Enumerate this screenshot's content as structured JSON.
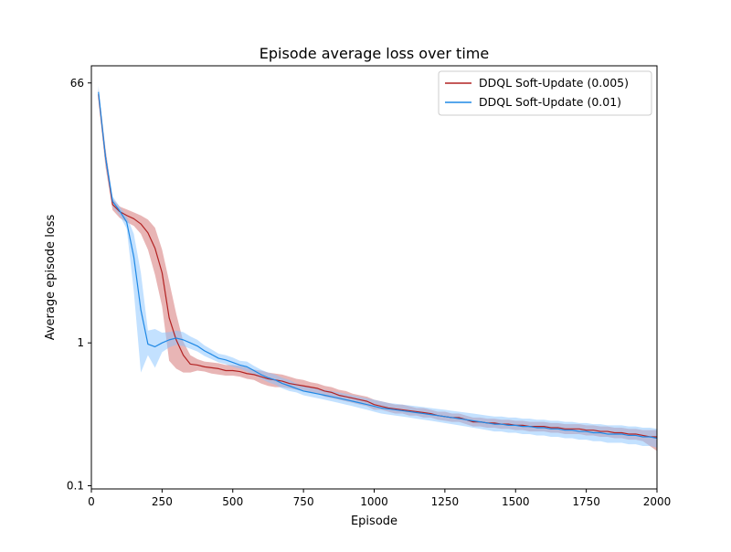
{
  "chart_data": {
    "type": "line",
    "title": "Episode average loss over time",
    "xlabel": "Episode",
    "ylabel": "Average episode loss",
    "xlim": [
      0,
      2000
    ],
    "ylim": [
      0.095,
      87
    ],
    "yscale": "log",
    "grid": false,
    "legend_position": "top-right",
    "x_ticks": [
      0,
      250,
      500,
      750,
      1000,
      1250,
      1500,
      1750,
      2000
    ],
    "y_ticks": [
      {
        "value": 0.1,
        "label": "0.1"
      },
      {
        "value": 1,
        "label": "1"
      },
      {
        "value": 66,
        "label": "66"
      }
    ],
    "series": [
      {
        "name": "DDQL Soft-Update (0.005)",
        "color": "#b22222",
        "band_color": "#cd5c5c",
        "x": [
          25,
          50,
          75,
          100,
          125,
          150,
          175,
          200,
          225,
          250,
          275,
          300,
          325,
          350,
          375,
          400,
          425,
          450,
          475,
          500,
          525,
          550,
          575,
          600,
          625,
          650,
          675,
          700,
          725,
          750,
          775,
          800,
          825,
          850,
          875,
          900,
          925,
          950,
          975,
          1000,
          1025,
          1050,
          1075,
          1100,
          1125,
          1150,
          1175,
          1200,
          1225,
          1250,
          1275,
          1300,
          1325,
          1350,
          1375,
          1400,
          1425,
          1450,
          1475,
          1500,
          1525,
          1550,
          1575,
          1600,
          1625,
          1650,
          1675,
          1700,
          1725,
          1750,
          1775,
          1800,
          1825,
          1850,
          1875,
          1900,
          1925,
          1950,
          1975,
          2000
        ],
        "y": [
          55,
          20,
          9.3,
          8.3,
          7.8,
          7.4,
          6.8,
          5.9,
          4.6,
          3.1,
          1.5,
          1.05,
          0.82,
          0.71,
          0.7,
          0.68,
          0.67,
          0.66,
          0.64,
          0.64,
          0.63,
          0.61,
          0.6,
          0.58,
          0.56,
          0.55,
          0.54,
          0.52,
          0.51,
          0.5,
          0.49,
          0.48,
          0.46,
          0.45,
          0.43,
          0.42,
          0.41,
          0.4,
          0.39,
          0.37,
          0.36,
          0.35,
          0.345,
          0.34,
          0.335,
          0.33,
          0.325,
          0.32,
          0.31,
          0.305,
          0.3,
          0.3,
          0.29,
          0.28,
          0.28,
          0.275,
          0.275,
          0.27,
          0.27,
          0.265,
          0.265,
          0.26,
          0.26,
          0.26,
          0.255,
          0.255,
          0.25,
          0.25,
          0.25,
          0.245,
          0.245,
          0.24,
          0.24,
          0.235,
          0.235,
          0.23,
          0.23,
          0.225,
          0.22,
          0.22
        ],
        "y_low": [
          50,
          17,
          8.5,
          7.5,
          7.0,
          6.6,
          5.8,
          4.5,
          3.0,
          1.8,
          0.75,
          0.66,
          0.62,
          0.62,
          0.64,
          0.63,
          0.61,
          0.6,
          0.59,
          0.59,
          0.58,
          0.56,
          0.55,
          0.52,
          0.5,
          0.49,
          0.49,
          0.48,
          0.47,
          0.46,
          0.45,
          0.44,
          0.42,
          0.41,
          0.4,
          0.39,
          0.38,
          0.37,
          0.36,
          0.34,
          0.34,
          0.33,
          0.32,
          0.32,
          0.31,
          0.31,
          0.3,
          0.3,
          0.29,
          0.285,
          0.28,
          0.28,
          0.27,
          0.26,
          0.26,
          0.255,
          0.255,
          0.25,
          0.25,
          0.245,
          0.245,
          0.24,
          0.24,
          0.24,
          0.235,
          0.235,
          0.23,
          0.23,
          0.23,
          0.225,
          0.225,
          0.22,
          0.22,
          0.215,
          0.215,
          0.21,
          0.21,
          0.205,
          0.19,
          0.175
        ],
        "y_high": [
          60,
          23,
          10.2,
          9.0,
          8.6,
          8.2,
          7.8,
          7.3,
          6.4,
          4.5,
          2.7,
          1.6,
          1.02,
          0.82,
          0.77,
          0.74,
          0.73,
          0.72,
          0.7,
          0.7,
          0.69,
          0.67,
          0.65,
          0.64,
          0.62,
          0.61,
          0.6,
          0.58,
          0.56,
          0.55,
          0.53,
          0.52,
          0.5,
          0.49,
          0.47,
          0.46,
          0.44,
          0.43,
          0.42,
          0.4,
          0.39,
          0.38,
          0.37,
          0.37,
          0.36,
          0.35,
          0.35,
          0.34,
          0.33,
          0.33,
          0.32,
          0.32,
          0.31,
          0.3,
          0.3,
          0.295,
          0.295,
          0.29,
          0.29,
          0.285,
          0.285,
          0.28,
          0.28,
          0.28,
          0.275,
          0.275,
          0.27,
          0.27,
          0.27,
          0.265,
          0.265,
          0.26,
          0.26,
          0.255,
          0.255,
          0.25,
          0.25,
          0.245,
          0.245,
          0.245
        ]
      },
      {
        "name": "DDQL Soft-Update (0.01)",
        "color": "#1e88e5",
        "band_color": "#87c3ff",
        "x": [
          25,
          50,
          75,
          100,
          125,
          150,
          175,
          200,
          225,
          250,
          275,
          300,
          325,
          350,
          375,
          400,
          425,
          450,
          475,
          500,
          525,
          550,
          575,
          600,
          625,
          650,
          675,
          700,
          725,
          750,
          775,
          800,
          825,
          850,
          875,
          900,
          925,
          950,
          975,
          1000,
          1025,
          1050,
          1075,
          1100,
          1125,
          1150,
          1175,
          1200,
          1225,
          1250,
          1275,
          1300,
          1325,
          1350,
          1375,
          1400,
          1425,
          1450,
          1475,
          1500,
          1525,
          1550,
          1575,
          1600,
          1625,
          1650,
          1675,
          1700,
          1725,
          1750,
          1775,
          1800,
          1825,
          1850,
          1875,
          1900,
          1925,
          1950,
          1975,
          2000
        ],
        "y": [
          57,
          20,
          9.8,
          8.4,
          7.0,
          4.0,
          1.7,
          0.98,
          0.94,
          1.0,
          1.05,
          1.08,
          1.05,
          1.0,
          0.95,
          0.88,
          0.83,
          0.78,
          0.76,
          0.73,
          0.7,
          0.68,
          0.64,
          0.6,
          0.57,
          0.55,
          0.52,
          0.5,
          0.48,
          0.46,
          0.45,
          0.44,
          0.43,
          0.42,
          0.41,
          0.4,
          0.39,
          0.38,
          0.37,
          0.36,
          0.35,
          0.345,
          0.34,
          0.335,
          0.33,
          0.325,
          0.32,
          0.315,
          0.31,
          0.305,
          0.3,
          0.295,
          0.29,
          0.285,
          0.28,
          0.275,
          0.27,
          0.27,
          0.265,
          0.265,
          0.26,
          0.26,
          0.255,
          0.255,
          0.25,
          0.25,
          0.245,
          0.245,
          0.24,
          0.24,
          0.235,
          0.235,
          0.23,
          0.23,
          0.23,
          0.225,
          0.225,
          0.22,
          0.22,
          0.215
        ],
        "y_low": [
          52,
          18,
          9.0,
          7.8,
          6.3,
          2.3,
          0.62,
          0.82,
          0.67,
          0.86,
          0.93,
          0.97,
          0.95,
          0.91,
          0.87,
          0.81,
          0.77,
          0.73,
          0.71,
          0.68,
          0.66,
          0.63,
          0.6,
          0.56,
          0.53,
          0.51,
          0.48,
          0.46,
          0.45,
          0.43,
          0.42,
          0.41,
          0.4,
          0.39,
          0.38,
          0.37,
          0.36,
          0.35,
          0.34,
          0.33,
          0.32,
          0.315,
          0.31,
          0.305,
          0.3,
          0.295,
          0.29,
          0.285,
          0.28,
          0.275,
          0.27,
          0.265,
          0.26,
          0.255,
          0.25,
          0.245,
          0.24,
          0.24,
          0.235,
          0.235,
          0.23,
          0.23,
          0.225,
          0.225,
          0.22,
          0.22,
          0.215,
          0.215,
          0.21,
          0.21,
          0.205,
          0.205,
          0.2,
          0.2,
          0.2,
          0.195,
          0.195,
          0.19,
          0.19,
          0.185
        ],
        "y_high": [
          63,
          22,
          10.6,
          9.0,
          7.7,
          5.8,
          3.1,
          1.22,
          1.25,
          1.18,
          1.19,
          1.22,
          1.19,
          1.11,
          1.05,
          0.96,
          0.9,
          0.84,
          0.82,
          0.79,
          0.75,
          0.74,
          0.69,
          0.65,
          0.62,
          0.6,
          0.57,
          0.55,
          0.52,
          0.5,
          0.49,
          0.48,
          0.47,
          0.46,
          0.45,
          0.44,
          0.43,
          0.42,
          0.41,
          0.4,
          0.39,
          0.38,
          0.375,
          0.37,
          0.365,
          0.36,
          0.355,
          0.35,
          0.345,
          0.34,
          0.335,
          0.33,
          0.325,
          0.32,
          0.315,
          0.31,
          0.305,
          0.305,
          0.3,
          0.3,
          0.295,
          0.295,
          0.29,
          0.29,
          0.285,
          0.285,
          0.28,
          0.28,
          0.275,
          0.275,
          0.27,
          0.27,
          0.265,
          0.265,
          0.265,
          0.26,
          0.26,
          0.255,
          0.255,
          0.25
        ]
      }
    ]
  }
}
